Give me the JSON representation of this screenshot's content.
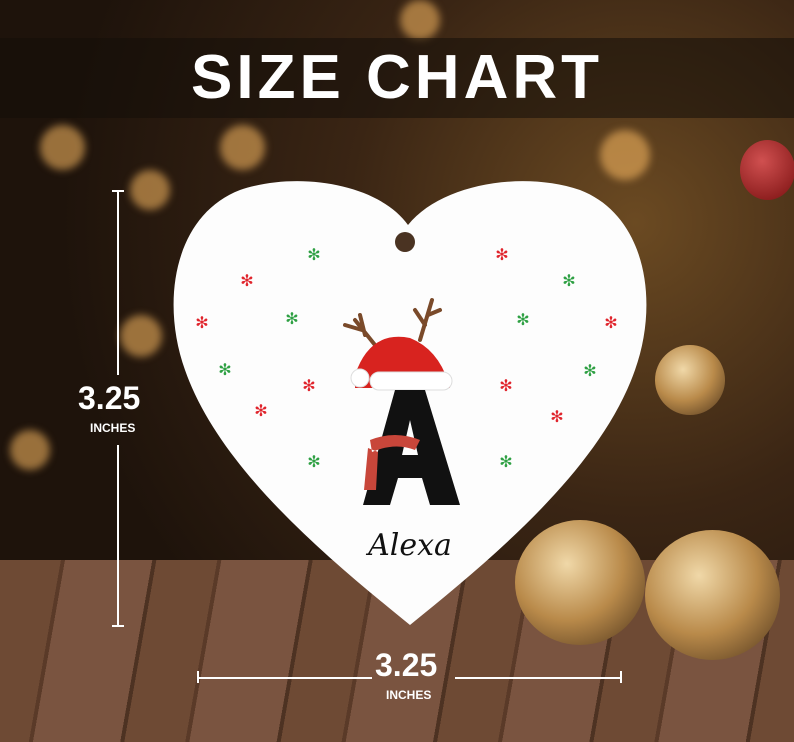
{
  "title": "SIZE CHART",
  "height": {
    "value": "3.25",
    "unit": "INCHES"
  },
  "width": {
    "value": "3.25",
    "unit": "INCHES"
  },
  "ornament": {
    "letter": "A",
    "name": "Alexa",
    "shape": "heart"
  },
  "colors": {
    "snow_red": "#e0242c",
    "snow_green": "#2ea043",
    "hat": "#d8231f"
  }
}
